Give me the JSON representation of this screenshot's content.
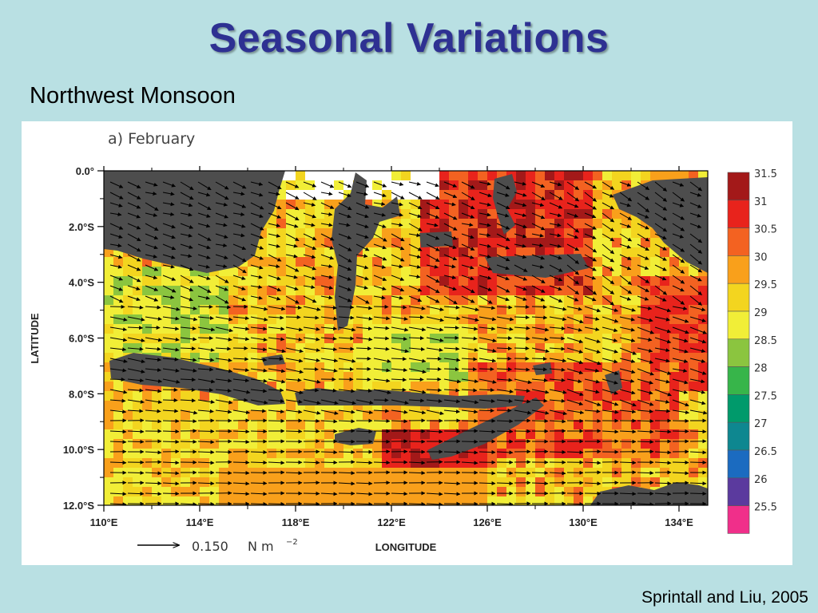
{
  "slide": {
    "title": "Seasonal Variations",
    "subtitle": "Northwest Monsoon",
    "citation": "Sprintall and Liu, 2005"
  },
  "figure": {
    "panel_label": "a)  February",
    "y_axis_title": "LATITUDE",
    "x_axis_title": "LONGITUDE",
    "y_ticks": [
      "0.0°",
      "2.0°S",
      "4.0°S",
      "6.0°S",
      "8.0°S",
      "10.0°S",
      "12.0°S"
    ],
    "x_ticks": [
      "110°E",
      "114°E",
      "118°E",
      "122°E",
      "126°E",
      "130°E",
      "134°E"
    ],
    "reference_vector": {
      "value": "0.150",
      "units": "N m",
      "units_exponent": "−2"
    },
    "colorbar": {
      "labels": [
        "31.5",
        "31",
        "30.5",
        "30",
        "29.5",
        "29",
        "28.5",
        "28",
        "27.5",
        "27",
        "26.5",
        "26",
        "25.5"
      ],
      "colors": [
        "#a31919",
        "#e8231c",
        "#f36221",
        "#f9a01b",
        "#f3d51f",
        "#f1ee37",
        "#8bc53f",
        "#37b54a",
        "#009a6b",
        "#0e8790",
        "#1b6bc0",
        "#5b3a9e",
        "#f02f8a"
      ]
    },
    "land_color": "#4d4d4d",
    "arrow_color": "#000000"
  }
}
